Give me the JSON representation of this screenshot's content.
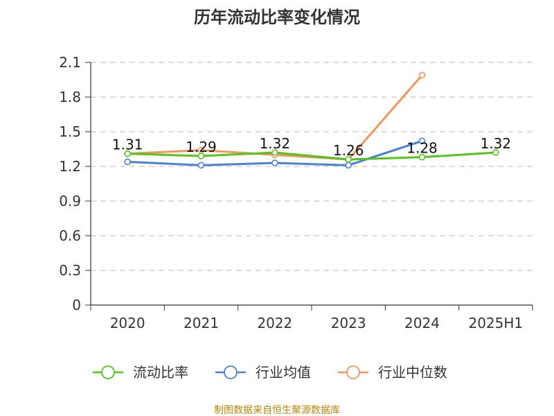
{
  "chart_data": {
    "type": "line",
    "title": "历年流动比率变化情况",
    "xlabel": "",
    "ylabel": "",
    "categories": [
      "2020",
      "2021",
      "2022",
      "2023",
      "2024",
      "2025H1"
    ],
    "ylim": [
      0,
      2.1
    ],
    "yticks": [
      "0",
      "0.3",
      "0.6",
      "0.9",
      "1.2",
      "1.5",
      "1.8",
      "2.1"
    ],
    "grid": true,
    "legend_position": "bottom",
    "series": [
      {
        "name": "流动比率",
        "color": "#52c41a",
        "values": [
          1.31,
          1.29,
          1.32,
          1.26,
          1.28,
          1.32
        ],
        "labels": [
          "1.31",
          "1.29",
          "1.32",
          "1.26",
          "1.28",
          "1.32"
        ]
      },
      {
        "name": "行业均值",
        "color": "#4a7fd6",
        "values": [
          1.24,
          1.21,
          1.23,
          1.21,
          1.42,
          null
        ]
      },
      {
        "name": "行业中位数",
        "color": "#f4935a",
        "values": [
          1.31,
          1.34,
          1.3,
          1.26,
          1.99,
          null
        ]
      }
    ]
  },
  "source": "制图数据来自恒生聚源数据库"
}
